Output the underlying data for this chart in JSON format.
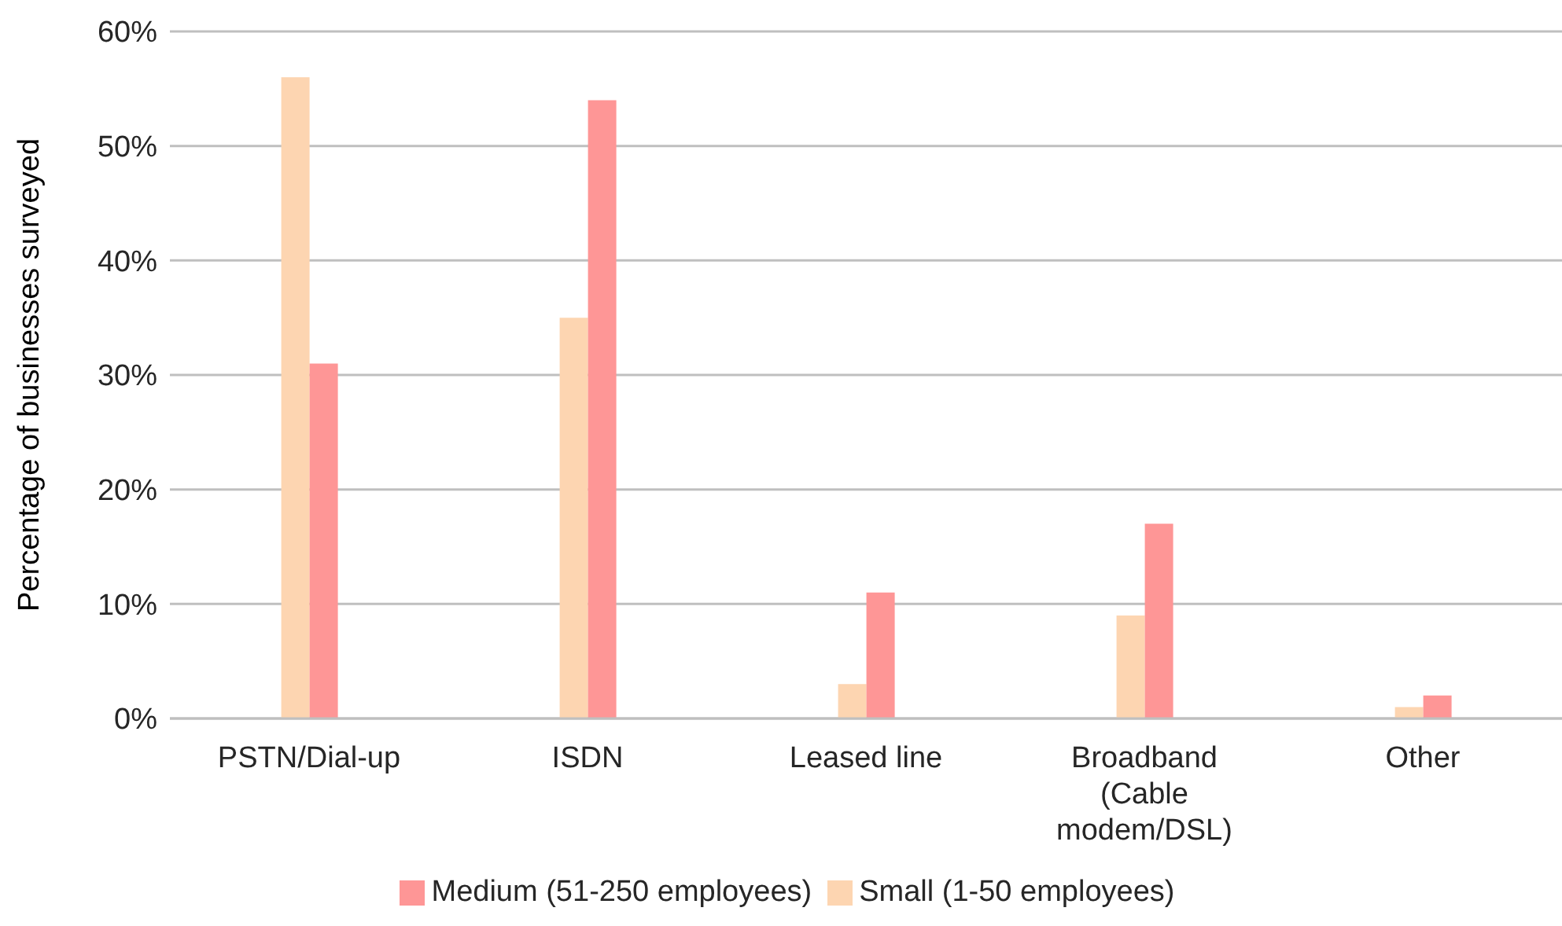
{
  "chart_data": {
    "type": "bar",
    "ylabel": "Percentage of businesses surveyed",
    "categories": [
      "PSTN/Dial-up",
      "ISDN",
      "Leased line",
      "Broadband (Cable modem/DSL)",
      "Other"
    ],
    "series": [
      {
        "name": "Small (1-50 employees)",
        "color": "#fdd5b1",
        "values": [
          56,
          35,
          3,
          9,
          1
        ]
      },
      {
        "name": "Medium (51-250 employees)",
        "color": "#fe9696",
        "values": [
          31,
          54,
          11,
          17,
          2
        ]
      }
    ],
    "ylim": [
      0,
      60
    ],
    "yticks": [
      {
        "value": 0,
        "label": "0%"
      },
      {
        "value": 10,
        "label": "10%"
      },
      {
        "value": 20,
        "label": "20%"
      },
      {
        "value": 30,
        "label": "30%"
      },
      {
        "value": 40,
        "label": "40%"
      },
      {
        "value": 50,
        "label": "50%"
      },
      {
        "value": 60,
        "label": "60%"
      }
    ],
    "grid": "y",
    "legend": "bottom"
  }
}
